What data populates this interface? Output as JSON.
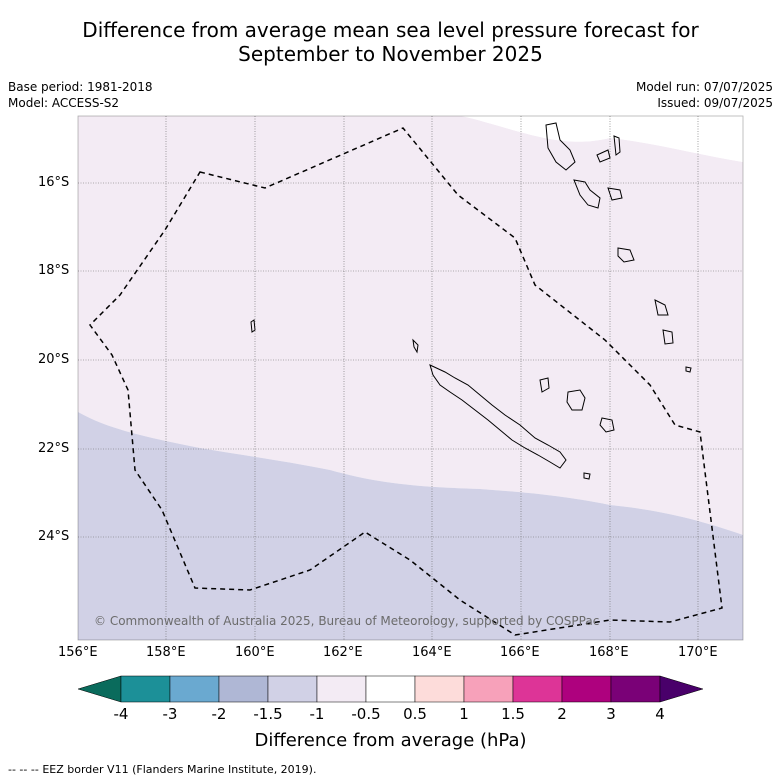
{
  "header": {
    "title_line1": "Difference from average mean sea level pressure forecast for",
    "title_line2": "September to November 2025",
    "base_period": "Base period: 1981-2018",
    "model": "Model: ACCESS-S2",
    "model_run": "Model run: 07/07/2025",
    "issued": "Issued: 09/07/2025"
  },
  "map": {
    "lat_labels": [
      "16°S",
      "18°S",
      "20°S",
      "22°S",
      "24°S"
    ],
    "lon_labels": [
      "156°E",
      "158°E",
      "160°E",
      "162°E",
      "164°E",
      "166°E",
      "168°E",
      "170°E"
    ],
    "copyright": "© Commonwealth of Australia 2025, Bureau of Meteorology, supported by COSPPac",
    "colors": {
      "band_-1_-0.5": "#f3ebf4",
      "band_-1.5_-1": "#d1d1e6",
      "land_outline": "#000000",
      "eez_border": "#000000",
      "grid": "#666666"
    }
  },
  "colorbar": {
    "tick_labels": [
      "-4",
      "-3",
      "-2",
      "-1.5",
      "-1",
      "-0.5",
      "0.5",
      "1",
      "1.5",
      "2",
      "3",
      "4"
    ],
    "colors": [
      "#0a6b5c",
      "#1c9098",
      "#6aa9d0",
      "#afb7d5",
      "#d1d1e6",
      "#f3ebf4",
      "#ffffff",
      "#fddcda",
      "#f7a1ba",
      "#dd3497",
      "#ae017e",
      "#7a0177",
      "#49006a"
    ],
    "title": "Difference from average (hPa)"
  },
  "footer": {
    "legend_symbol": "--  --  --",
    "legend_text": "EEZ border V11 (Flanders Marine Institute, 2019)."
  }
}
